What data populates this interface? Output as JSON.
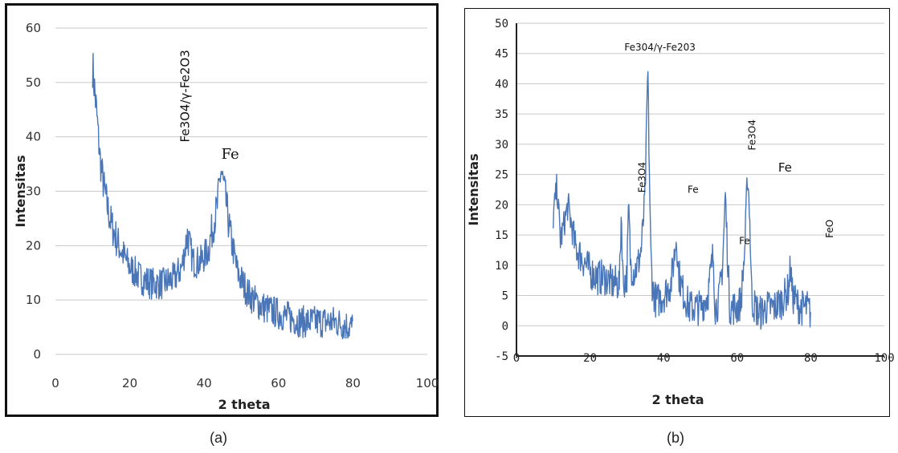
{
  "captions": {
    "a": "(a)",
    "b": "(b)"
  },
  "chart_data": [
    {
      "type": "line",
      "panel": "a",
      "title": "",
      "xlabel": "2 theta",
      "ylabel": "Intensitas",
      "xlim": [
        0,
        100
      ],
      "ylim": [
        0,
        60
      ],
      "xticks": [
        0,
        20,
        40,
        60,
        80,
        100
      ],
      "yticks": [
        0,
        10,
        20,
        30,
        40,
        50,
        60
      ],
      "grid": true,
      "color": "#4a76b8",
      "annotations": [
        {
          "text": "Fe3O4/γ-Fe2O3",
          "x": 36,
          "y": 39,
          "rotation": -90
        },
        {
          "text": "Fe",
          "x": 47,
          "y": 36,
          "rotation": 0
        }
      ],
      "series": [
        {
          "x": [
            10,
            11,
            12,
            13,
            14,
            15,
            17,
            20,
            23,
            26,
            29,
            32,
            34,
            35.5,
            37,
            39,
            41,
            42.5,
            43.5,
            44.5,
            45.5,
            47,
            49,
            52,
            55,
            58,
            62,
            66,
            70,
            75,
            80
          ],
          "y": [
            53,
            45,
            36,
            31,
            27,
            24,
            20,
            16,
            14,
            13,
            13,
            14,
            16,
            22,
            17,
            17,
            19,
            24,
            27,
            34,
            30,
            22,
            15,
            11,
            9,
            8,
            7,
            6,
            6,
            6,
            5
          ]
        }
      ]
    },
    {
      "type": "line",
      "panel": "b",
      "title": "",
      "xlabel": "2 theta",
      "ylabel": "Intensitas",
      "xlim": [
        0,
        100
      ],
      "ylim": [
        -5,
        50
      ],
      "xticks": [
        0,
        20,
        40,
        60,
        80,
        100
      ],
      "yticks": [
        -5,
        0,
        5,
        10,
        15,
        20,
        25,
        30,
        35,
        40,
        45,
        50
      ],
      "grid": true,
      "color": "#4a76b8",
      "annotations": [
        {
          "text": "Fe304/γ-Fe203",
          "x": 39,
          "y": 45.5,
          "rotation": 0
        },
        {
          "text": "Fe3O4",
          "x": 35,
          "y": 22,
          "rotation": -90
        },
        {
          "text": "Fe",
          "x": 48,
          "y": 22,
          "rotation": 0
        },
        {
          "text": "Fe3O4",
          "x": 65,
          "y": 29,
          "rotation": -90
        },
        {
          "text": "Fe",
          "x": 73,
          "y": 25.5,
          "rotation": 0
        },
        {
          "text": "Fe",
          "x": 62,
          "y": 13.5,
          "rotation": 0
        },
        {
          "text": "FeO",
          "x": 86,
          "y": 14.5,
          "rotation": -90
        }
      ],
      "series": [
        {
          "x": [
            10,
            11,
            12,
            14,
            16,
            18,
            20,
            22,
            24,
            26,
            28,
            28.5,
            29,
            30,
            30.5,
            31,
            32,
            33,
            34,
            35,
            35.7,
            36,
            36.5,
            37,
            38,
            40,
            42,
            43,
            43.5,
            44,
            45,
            47,
            50,
            52,
            53.5,
            54,
            55,
            56,
            56.8,
            57,
            57.5,
            58,
            60,
            61,
            62,
            62.8,
            63.3,
            64,
            66,
            68,
            70,
            72,
            74,
            74.5,
            75,
            77,
            79,
            80
          ],
          "y": [
            18,
            23,
            14,
            20,
            13,
            11,
            9,
            8,
            8,
            7,
            7,
            19,
            7,
            8,
            20,
            10,
            9,
            10,
            13,
            22,
            43,
            30,
            12,
            6,
            4,
            5,
            7,
            12,
            15,
            9,
            6,
            3,
            3,
            5,
            12,
            3,
            4,
            10,
            22,
            18,
            10,
            3,
            3,
            4,
            12,
            25,
            20,
            4,
            2,
            3,
            3,
            4,
            6,
            10,
            5,
            3,
            3,
            2
          ]
        }
      ]
    }
  ]
}
